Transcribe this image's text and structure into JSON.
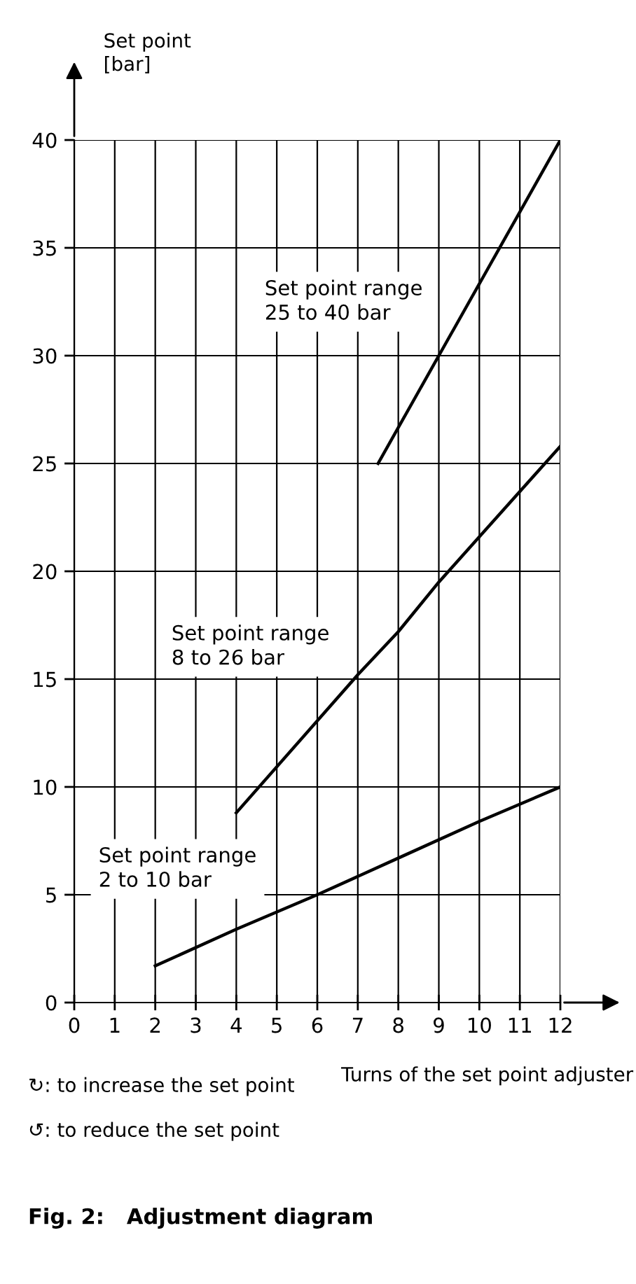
{
  "chart_data": {
    "type": "line",
    "xlabel": "Turns of the set point adjuster",
    "ylabel": "Set point\n[bar]",
    "series": [
      {
        "name": "Set point range\n2 to 10 bar",
        "color": "#000000",
        "x": [
          2,
          4,
          6,
          8,
          10,
          12
        ],
        "values": [
          1.7,
          3.4,
          5.0,
          6.7,
          8.4,
          10
        ]
      },
      {
        "name": "Set point range\n8 to 26 bar",
        "color": "#000000",
        "x": [
          4,
          7,
          8,
          9,
          12
        ],
        "values": [
          8.8,
          15.2,
          17.2,
          19.5,
          25.8
        ]
      },
      {
        "name": "Set point range\n25 to 40 bar",
        "color": "#000000",
        "x": [
          7.5,
          9,
          12
        ],
        "values": [
          25,
          30,
          40
        ]
      }
    ],
    "xlim": [
      0,
      12
    ],
    "ylim": [
      0,
      40
    ],
    "xticks": [
      0,
      1,
      2,
      3,
      4,
      5,
      6,
      7,
      8,
      9,
      10,
      11,
      12
    ],
    "yticks": [
      0,
      5,
      10,
      15,
      20,
      25,
      30,
      35,
      40
    ],
    "grid": true,
    "marker": "none",
    "line_style": "solid",
    "legend": false,
    "annotations": [
      "↻: to increase the set point",
      "↺: to reduce the set point",
      "Fig. 2:   Adjustment diagram"
    ]
  }
}
